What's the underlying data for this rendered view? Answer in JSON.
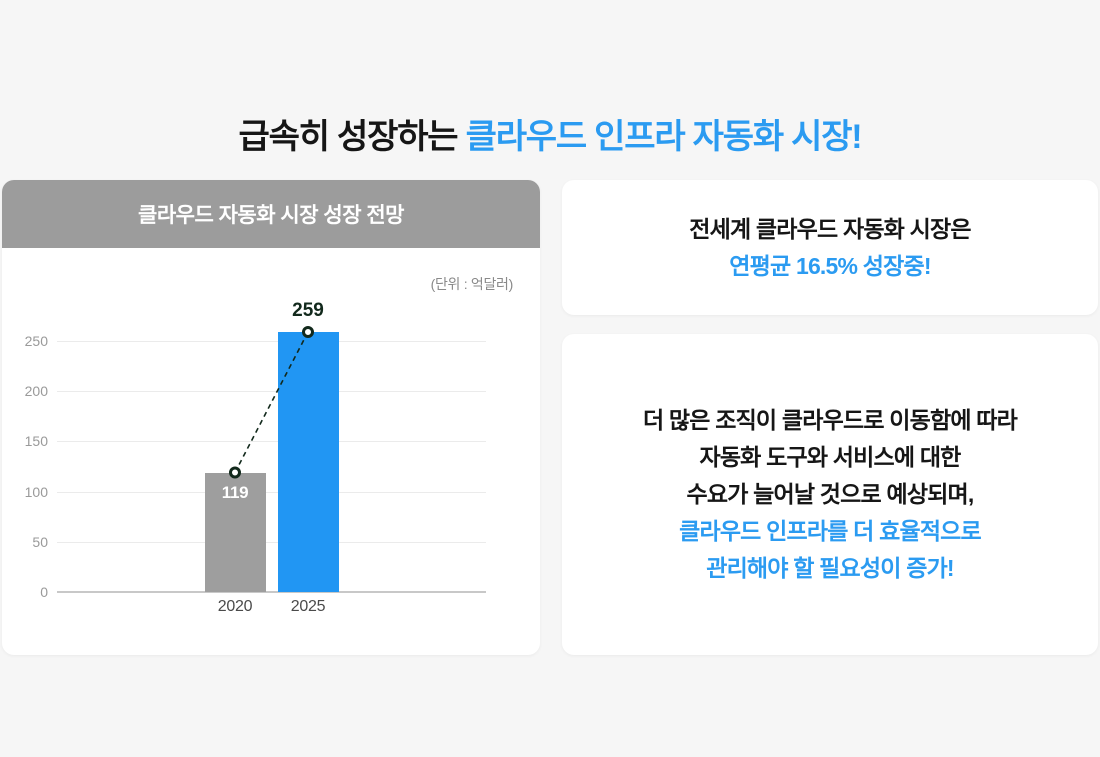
{
  "page": {
    "title_black": "급속히 성장하는 ",
    "title_blue": "클라우드 인프라 자동화 시장!"
  },
  "colors": {
    "accent_blue": "#2B9BF1",
    "bar_blue": "#2196F3",
    "bar_gray": "#9E9E9E",
    "header_gray": "#9C9C9C",
    "dark_label": "#12291C",
    "background": "#F6F6F6",
    "card_white": "#FFFFFF"
  },
  "chart_card": {
    "header": "클라우드 자동화 시장 성장 전망",
    "unit_label": "(단위 : 억달러)"
  },
  "chart_data": {
    "type": "bar",
    "title": "클라우드 자동화 시장 성장 전망",
    "unit": "(단위 : 억달러)",
    "categories": [
      "2020",
      "2025"
    ],
    "values": [
      119,
      259
    ],
    "bar_colors": [
      "#9E9E9E",
      "#2196F3"
    ],
    "value_label_styles": [
      "inside-top-white",
      "above-dark"
    ],
    "xlabel": "",
    "ylabel": "",
    "ylim": [
      0,
      250
    ],
    "yticks": [
      0,
      50,
      100,
      150,
      200,
      250
    ],
    "grid": true,
    "legend": "none",
    "overlay": "dashed trend line with circular markers at bar tops"
  },
  "info_cards": [
    {
      "lines": [
        {
          "text": "전세계 클라우드 자동화 시장은",
          "color": "black"
        },
        {
          "text": "연평균 16.5% 성장중!",
          "color": "blue"
        }
      ]
    },
    {
      "lines": [
        {
          "text": "더 많은 조직이 클라우드로 이동함에 따라",
          "color": "black"
        },
        {
          "text": "자동화 도구와 서비스에 대한",
          "color": "black"
        },
        {
          "text": "수요가 늘어날 것으로 예상되며,",
          "color": "black"
        },
        {
          "text": "클라우드 인프라를 더 효율적으로",
          "color": "blue"
        },
        {
          "text": "관리해야 할 필요성이 증가!",
          "color": "blue"
        }
      ]
    }
  ]
}
